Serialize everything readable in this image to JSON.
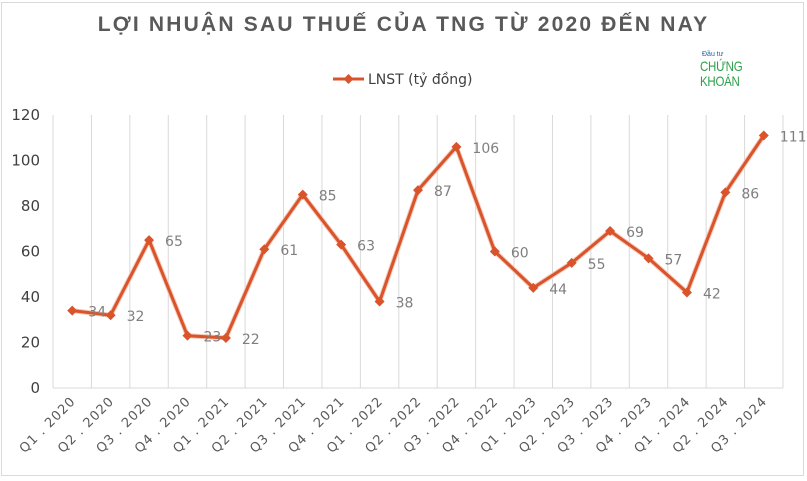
{
  "chart_data": {
    "type": "line",
    "title": "LỢI NHUẬN SAU THUẾ CỦA TNG TỪ 2020 ĐẾN NAY",
    "xlabel": "",
    "ylabel": "",
    "ylim": [
      0,
      120
    ],
    "yticks": [
      0,
      20,
      40,
      60,
      80,
      100,
      120
    ],
    "grid": "vertical category gridlines",
    "legend_position": "top",
    "categories": [
      "Q1.2020",
      "Q2.2020",
      "Q3.2020",
      "Q4.2020",
      "Q1.2021",
      "Q2.2021",
      "Q3.2021",
      "Q4.2021",
      "Q1.2022",
      "Q2.2022",
      "Q3.2022",
      "Q4.2022",
      "Q1.2023",
      "Q2.2023",
      "Q3.2023",
      "Q4.2023",
      "Q1.2024",
      "Q2.2024",
      "Q3.2024"
    ],
    "series": [
      {
        "name": "LNST (tỷ đồng)",
        "color": "#d9532b",
        "values": [
          34,
          32,
          65,
          23,
          22,
          61,
          85,
          63,
          38,
          87,
          106,
          60,
          44,
          55,
          69,
          57,
          42,
          86,
          111
        ]
      }
    ]
  },
  "watermark": {
    "small": "Đầu tư",
    "big": "CHỨNG KHOÁN"
  }
}
